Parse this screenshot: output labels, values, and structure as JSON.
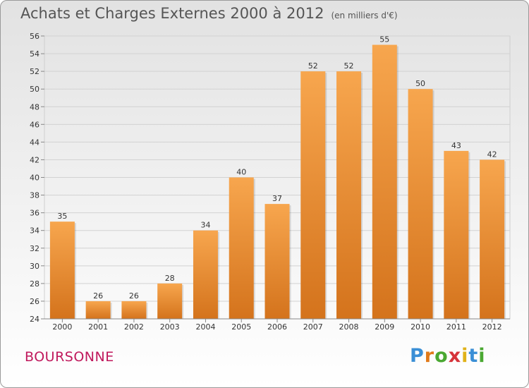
{
  "chart_data": {
    "type": "bar",
    "title": "Achats et Charges Externes 2000 à 2012",
    "subtitle": "(en milliers d'€)",
    "categories": [
      "2000",
      "2001",
      "2002",
      "2003",
      "2004",
      "2005",
      "2006",
      "2007",
      "2008",
      "2009",
      "2010",
      "2011",
      "2012"
    ],
    "values": [
      35,
      26,
      26,
      28,
      34,
      40,
      37,
      52,
      52,
      55,
      50,
      43,
      42
    ],
    "ylim": [
      24,
      56
    ],
    "yticks": [
      "24",
      "26",
      "28",
      "30",
      "32",
      "34",
      "36",
      "38",
      "40",
      "42",
      "44",
      "46",
      "48",
      "50",
      "52",
      "54",
      "56"
    ],
    "grid": true,
    "bar_color_top": "#f7a64e",
    "bar_color_bottom": "#d4731c"
  },
  "footer": {
    "commune": "BOURSONNE",
    "brand_letters": [
      "P",
      "r",
      "o",
      "x",
      "i",
      "t",
      "i"
    ],
    "brand_colors": [
      "#3a8fd6",
      "#e07a1a",
      "#4aa832",
      "#d6333a",
      "#e0b21a",
      "#3a8fd6",
      "#4aa832"
    ]
  }
}
